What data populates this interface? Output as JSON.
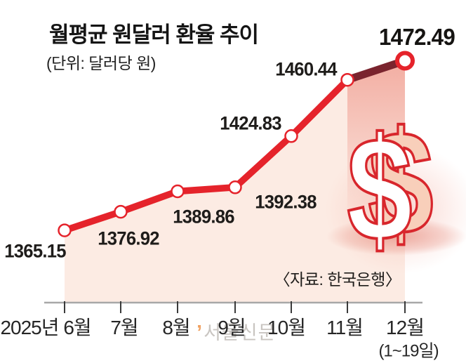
{
  "header": {
    "title": "월평균 원달러 환율 추이",
    "unit_note": "(단위: 달러당 원)"
  },
  "source_note": "〈자료: 한국은행〉",
  "watermark": {
    "mark": "’",
    "text": "서울신문"
  },
  "dollar_glyph": "$",
  "colors": {
    "line": "#e5232b",
    "line_last_segment": "#7a242e",
    "area_fill": "#fcebe3",
    "area_glow": "#f09e92",
    "axis": "#a8a8a8",
    "tick": "#3a3a3a",
    "text": "#1e1c1a",
    "watermark_text": "#c9c5c1",
    "watermark_mark": "#f0a263",
    "dollar_outline": "#d8262c",
    "dollar_front": "#ffffff",
    "dollar_back": "#f8cfba"
  },
  "chart_data": {
    "type": "line",
    "title": "월평균 원달러 환율 추이",
    "unit": "원 per 달러",
    "x_prefix": "2025년",
    "categories": [
      "6월",
      "7월",
      "8월",
      "9월",
      "10월",
      "11월",
      "12월"
    ],
    "last_category_note": "(1~19일)",
    "values": [
      1365.15,
      1376.92,
      1389.86,
      1392.38,
      1424.83,
      1460.44,
      1472.49
    ],
    "labels": [
      "1365.15",
      "1376.92",
      "1389.86",
      "1392.38",
      "1424.83",
      "1460.44",
      "1472.49"
    ],
    "series_name": "월평균 원달러 환율",
    "ylim": [
      1319.4,
      1500
    ],
    "grid": false,
    "legend": "none",
    "style_notes": "area filled light pink; final segment (11월→12월) drawn dark maroon; last point emphasized with open ring marker",
    "source": "한국은행"
  }
}
